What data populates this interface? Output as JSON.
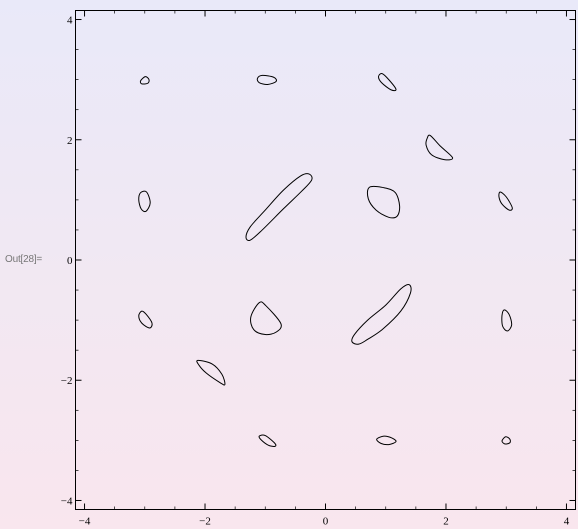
{
  "cell": {
    "out_label": "Out[28]="
  },
  "chart_data": {
    "type": "line",
    "title": "",
    "xlabel": "",
    "ylabel": "",
    "xlim": [
      -4.15,
      4.15
    ],
    "ylim": [
      -4.15,
      4.15
    ],
    "grid": false,
    "legend": "none",
    "colors": {
      "curve": "#000000",
      "frame": "#000000"
    },
    "x_ticks": [
      {
        "value": -4,
        "label": "−4"
      },
      {
        "value": -2,
        "label": "−2"
      },
      {
        "value": 0,
        "label": "0"
      },
      {
        "value": 2,
        "label": "2"
      },
      {
        "value": 4,
        "label": "4"
      }
    ],
    "y_ticks": [
      {
        "value": -4,
        "label": "−4"
      },
      {
        "value": -2,
        "label": "−2"
      },
      {
        "value": 0,
        "label": "0"
      },
      {
        "value": 2,
        "label": "2"
      },
      {
        "value": 4,
        "label": "4"
      }
    ],
    "series": [
      {
        "points": [
          [
            -2.99,
            3.05
          ],
          [
            -2.93,
            3.0
          ],
          [
            -2.95,
            2.94
          ],
          [
            -3.05,
            2.93
          ],
          [
            -3.07,
            2.98
          ]
        ]
      },
      {
        "points": [
          [
            -1.05,
            3.07
          ],
          [
            -0.86,
            3.04
          ],
          [
            -0.82,
            2.97
          ],
          [
            -0.96,
            2.92
          ],
          [
            -1.1,
            2.95
          ],
          [
            -1.13,
            3.02
          ]
        ]
      },
      {
        "points": [
          [
            0.94,
            3.1
          ],
          [
            1.05,
            3.0
          ],
          [
            1.17,
            2.84
          ],
          [
            1.09,
            2.83
          ],
          [
            0.93,
            2.95
          ],
          [
            0.88,
            3.05
          ]
        ]
      },
      {
        "points": [
          [
            1.74,
            2.07
          ],
          [
            1.9,
            1.9
          ],
          [
            2.11,
            1.7
          ],
          [
            1.97,
            1.67
          ],
          [
            1.76,
            1.75
          ],
          [
            1.67,
            1.91
          ],
          [
            1.69,
            2.03
          ]
        ]
      },
      {
        "points": [
          [
            -3.07,
            1.12
          ],
          [
            -2.97,
            1.13
          ],
          [
            -2.91,
            0.95
          ],
          [
            -2.98,
            0.81
          ],
          [
            -3.06,
            0.85
          ],
          [
            -3.1,
            1.0
          ]
        ]
      },
      {
        "points": [
          [
            -0.27,
            1.43
          ],
          [
            -0.41,
            1.4
          ],
          [
            -0.7,
            1.16
          ],
          [
            -1.0,
            0.83
          ],
          [
            -1.25,
            0.55
          ],
          [
            -1.32,
            0.38
          ],
          [
            -1.25,
            0.33
          ],
          [
            -1.05,
            0.5
          ],
          [
            -0.7,
            0.85
          ],
          [
            -0.4,
            1.14
          ],
          [
            -0.23,
            1.33
          ]
        ]
      },
      {
        "points": [
          [
            0.73,
            1.21
          ],
          [
            0.98,
            1.2
          ],
          [
            1.16,
            1.12
          ],
          [
            1.23,
            0.9
          ],
          [
            1.19,
            0.73
          ],
          [
            1.05,
            0.71
          ],
          [
            0.84,
            0.83
          ],
          [
            0.71,
            1.02
          ]
        ]
      },
      {
        "points": [
          [
            2.9,
            1.13
          ],
          [
            3.0,
            1.05
          ],
          [
            3.1,
            0.87
          ],
          [
            3.05,
            0.83
          ],
          [
            2.93,
            0.93
          ],
          [
            2.88,
            1.05
          ]
        ]
      },
      {
        "points": [
          [
            1.39,
            -0.41
          ],
          [
            1.41,
            -0.55
          ],
          [
            1.25,
            -0.85
          ],
          [
            0.95,
            -1.15
          ],
          [
            0.7,
            -1.32
          ],
          [
            0.55,
            -1.4
          ],
          [
            0.44,
            -1.36
          ],
          [
            0.48,
            -1.24
          ],
          [
            0.7,
            -1.0
          ],
          [
            1.0,
            -0.75
          ],
          [
            1.25,
            -0.48
          ]
        ]
      },
      {
        "points": [
          [
            -3.05,
            -0.85
          ],
          [
            -2.98,
            -0.9
          ],
          [
            -2.88,
            -1.05
          ],
          [
            -2.92,
            -1.13
          ],
          [
            -3.05,
            -1.05
          ],
          [
            -3.1,
            -0.93
          ]
        ]
      },
      {
        "points": [
          [
            -1.1,
            -0.71
          ],
          [
            -0.99,
            -0.76
          ],
          [
            -0.74,
            -1.06
          ],
          [
            -0.82,
            -1.2
          ],
          [
            -1.0,
            -1.24
          ],
          [
            -1.19,
            -1.16
          ],
          [
            -1.24,
            -0.95
          ]
        ]
      },
      {
        "points": [
          [
            2.97,
            -0.83
          ],
          [
            3.05,
            -0.91
          ],
          [
            3.09,
            -1.08
          ],
          [
            3.02,
            -1.18
          ],
          [
            2.94,
            -1.1
          ],
          [
            2.93,
            -0.92
          ]
        ]
      },
      {
        "points": [
          [
            -2.12,
            -1.67
          ],
          [
            -1.88,
            -1.73
          ],
          [
            -1.72,
            -1.9
          ],
          [
            -1.67,
            -2.07
          ],
          [
            -1.75,
            -2.04
          ],
          [
            -1.98,
            -1.88
          ],
          [
            -2.1,
            -1.75
          ]
        ]
      },
      {
        "points": [
          [
            -1.1,
            -2.93
          ],
          [
            -1.0,
            -2.92
          ],
          [
            -0.84,
            -3.05
          ],
          [
            -0.84,
            -3.1
          ],
          [
            -0.95,
            -3.08
          ],
          [
            -1.07,
            -2.99
          ]
        ]
      },
      {
        "points": [
          [
            0.97,
            -2.93
          ],
          [
            1.1,
            -2.96
          ],
          [
            1.17,
            -3.02
          ],
          [
            1.05,
            -3.07
          ],
          [
            0.92,
            -3.05
          ],
          [
            0.85,
            -2.98
          ]
        ]
      },
      {
        "points": [
          [
            2.99,
            -2.94
          ],
          [
            3.06,
            -2.98
          ],
          [
            3.06,
            -3.04
          ],
          [
            2.98,
            -3.06
          ],
          [
            2.93,
            -3.01
          ]
        ]
      }
    ]
  }
}
